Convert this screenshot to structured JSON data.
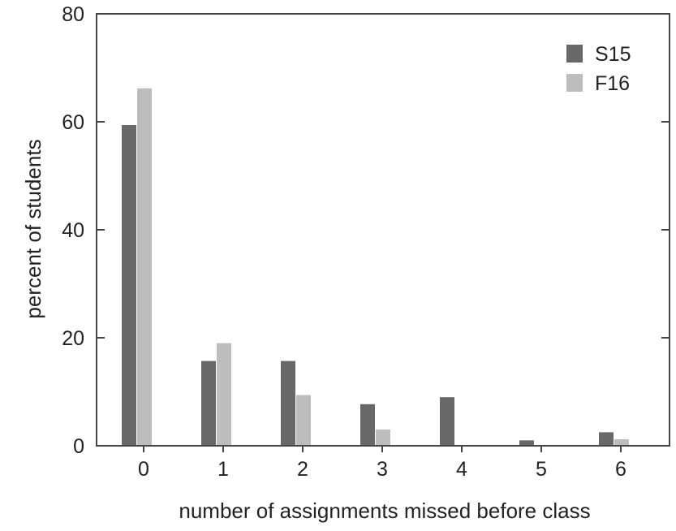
{
  "chart_data": {
    "type": "bar",
    "title": "",
    "xlabel": "number of assignments missed before class",
    "ylabel": "percent of students",
    "categories": [
      "0",
      "1",
      "2",
      "3",
      "4",
      "5",
      "6"
    ],
    "ylim": [
      0,
      80
    ],
    "yticks": [
      "0",
      "20",
      "40",
      "60",
      "80"
    ],
    "grid": false,
    "legend_position": "top-right",
    "series": [
      {
        "name": "S15",
        "color": "#686868",
        "values": [
          59.4,
          15.7,
          15.7,
          7.7,
          9.0,
          1.0,
          2.5
        ]
      },
      {
        "name": "F16",
        "color": "#bdbdbd",
        "values": [
          66.2,
          19.0,
          9.4,
          3.0,
          0,
          0,
          1.2
        ]
      }
    ]
  }
}
